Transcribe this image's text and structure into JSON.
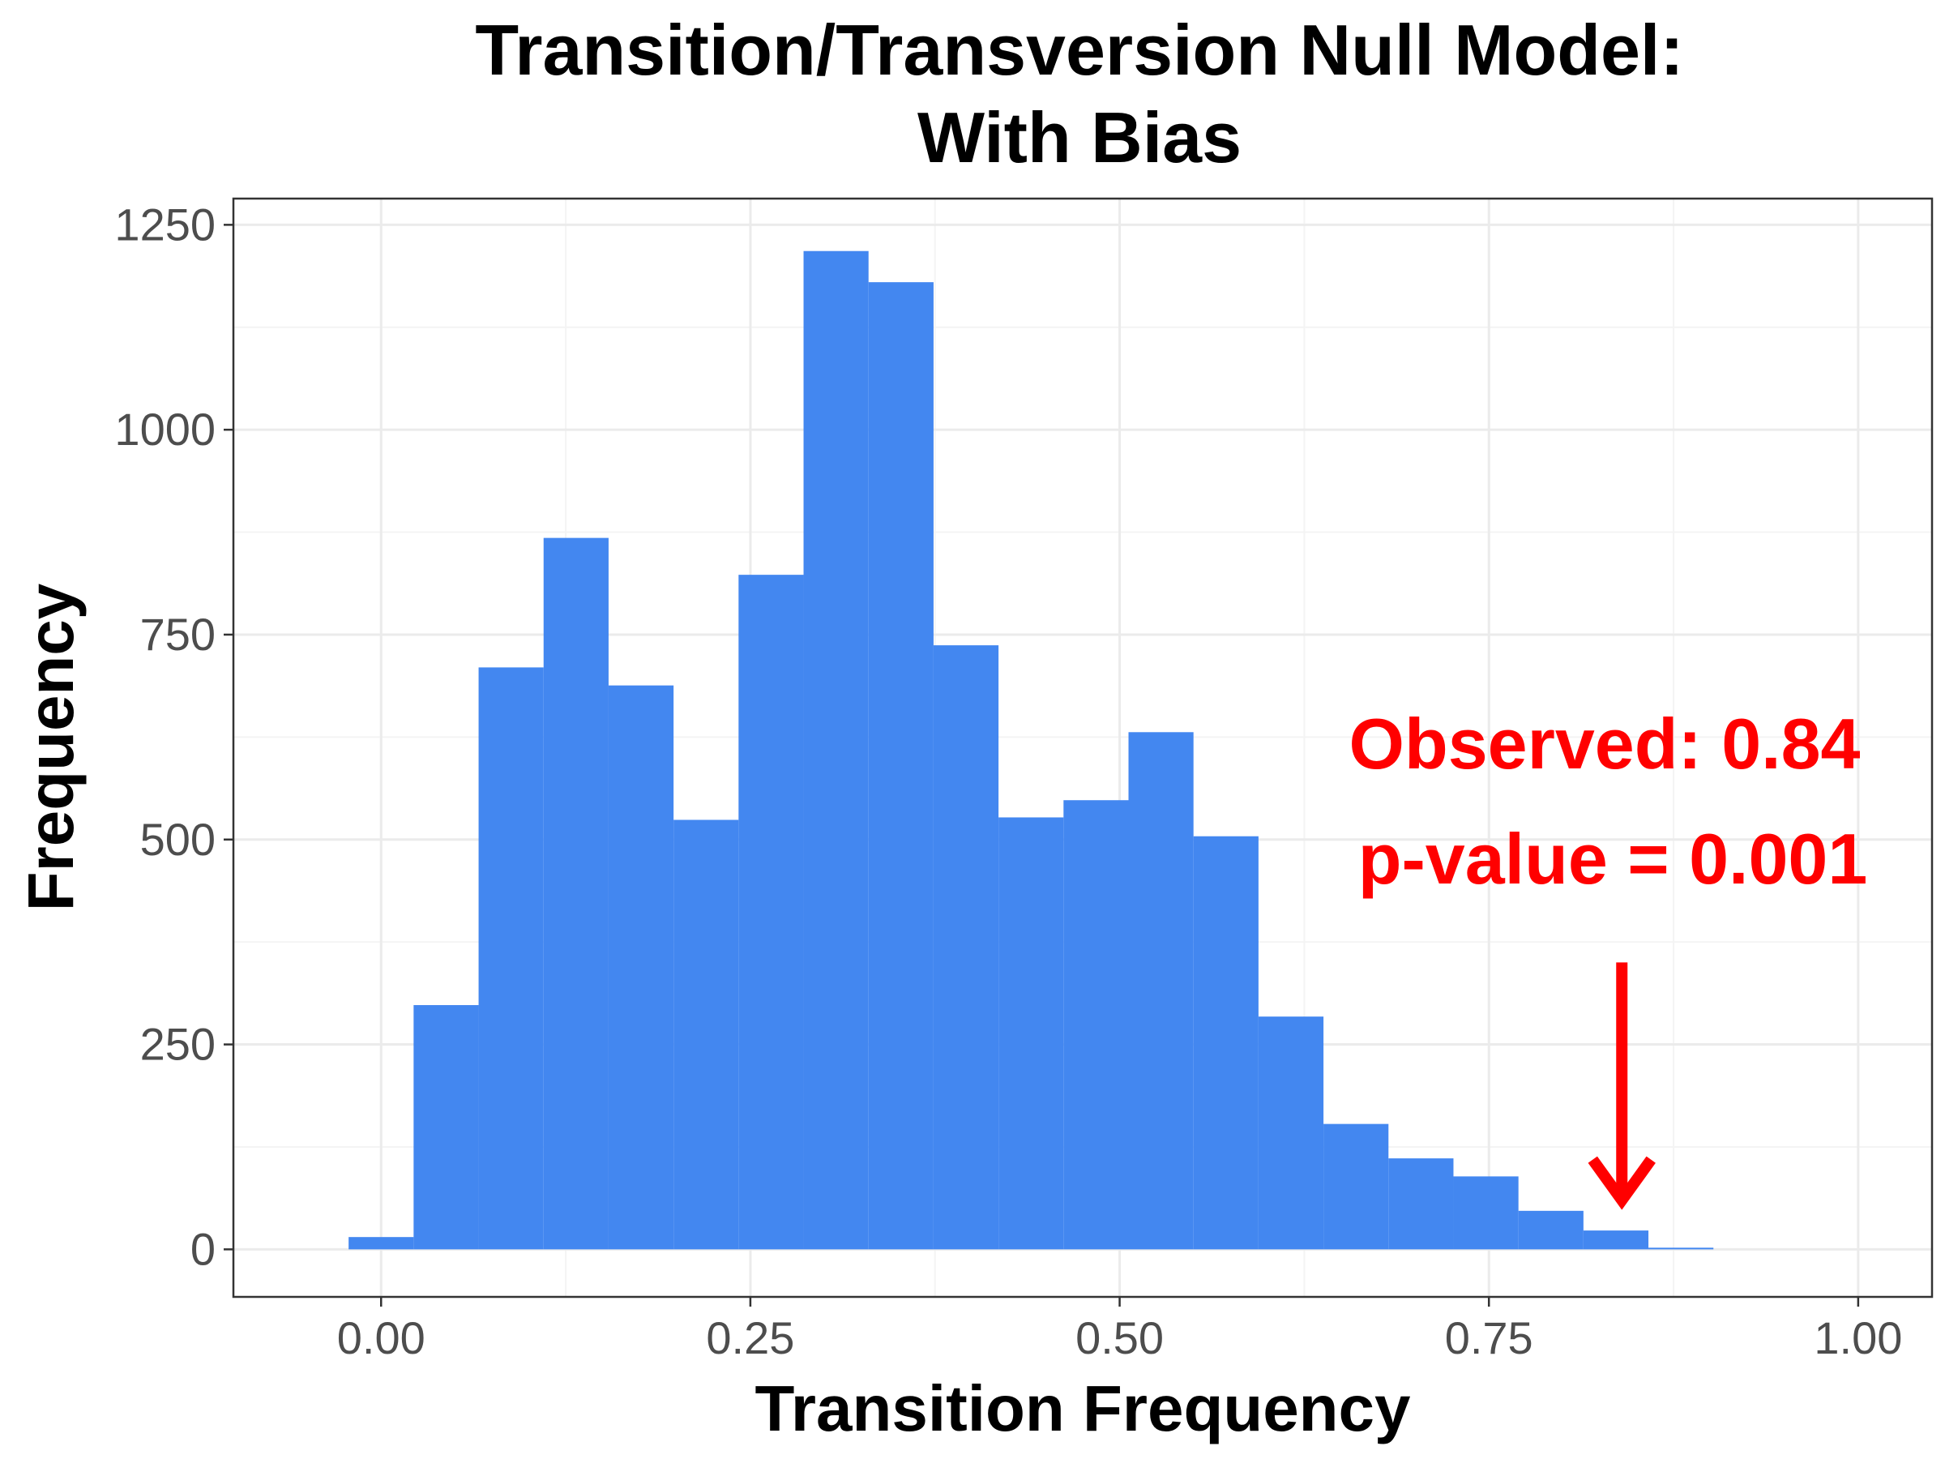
{
  "chart_data": {
    "type": "bar",
    "title_lines": [
      "Transition/Transversion Null Model:",
      "With Bias"
    ],
    "xlabel": "Transition Frequency",
    "ylabel": "Frequency",
    "xlim": [
      -0.1,
      1.05
    ],
    "ylim": [
      -58,
      1282
    ],
    "x_ticks": [
      0.0,
      0.25,
      0.5,
      0.75,
      1.0
    ],
    "x_tick_labels": [
      "0.00",
      "0.25",
      "0.50",
      "0.75",
      "1.00"
    ],
    "y_ticks": [
      0,
      250,
      500,
      750,
      1000,
      1250
    ],
    "y_tick_labels": [
      "0",
      "250",
      "500",
      "750",
      "1000",
      "1250"
    ],
    "grid": true,
    "bar_color": "#4387f0",
    "bins": [
      {
        "x0": -0.022,
        "x1": 0.022,
        "count": 15
      },
      {
        "x0": 0.022,
        "x1": 0.066,
        "count": 298
      },
      {
        "x0": 0.066,
        "x1": 0.11,
        "count": 710
      },
      {
        "x0": 0.11,
        "x1": 0.154,
        "count": 868
      },
      {
        "x0": 0.154,
        "x1": 0.198,
        "count": 688
      },
      {
        "x0": 0.198,
        "x1": 0.242,
        "count": 524
      },
      {
        "x0": 0.242,
        "x1": 0.286,
        "count": 823
      },
      {
        "x0": 0.286,
        "x1": 0.33,
        "count": 1218
      },
      {
        "x0": 0.33,
        "x1": 0.374,
        "count": 1180
      },
      {
        "x0": 0.374,
        "x1": 0.418,
        "count": 737
      },
      {
        "x0": 0.418,
        "x1": 0.462,
        "count": 527
      },
      {
        "x0": 0.462,
        "x1": 0.506,
        "count": 548
      },
      {
        "x0": 0.506,
        "x1": 0.55,
        "count": 631
      },
      {
        "x0": 0.55,
        "x1": 0.594,
        "count": 504
      },
      {
        "x0": 0.594,
        "x1": 0.638,
        "count": 284
      },
      {
        "x0": 0.638,
        "x1": 0.682,
        "count": 153
      },
      {
        "x0": 0.682,
        "x1": 0.726,
        "count": 111
      },
      {
        "x0": 0.726,
        "x1": 0.77,
        "count": 89
      },
      {
        "x0": 0.77,
        "x1": 0.814,
        "count": 47
      },
      {
        "x0": 0.814,
        "x1": 0.858,
        "count": 23
      },
      {
        "x0": 0.858,
        "x1": 0.902,
        "count": 2
      }
    ],
    "annotations": {
      "observed_label": "Observed: 0.84",
      "pvalue_label": "p-value = 0.001",
      "observed_value": 0.84,
      "arrow_from_y": 350,
      "arrow_to_y": 60,
      "color": "#ff0000"
    }
  }
}
